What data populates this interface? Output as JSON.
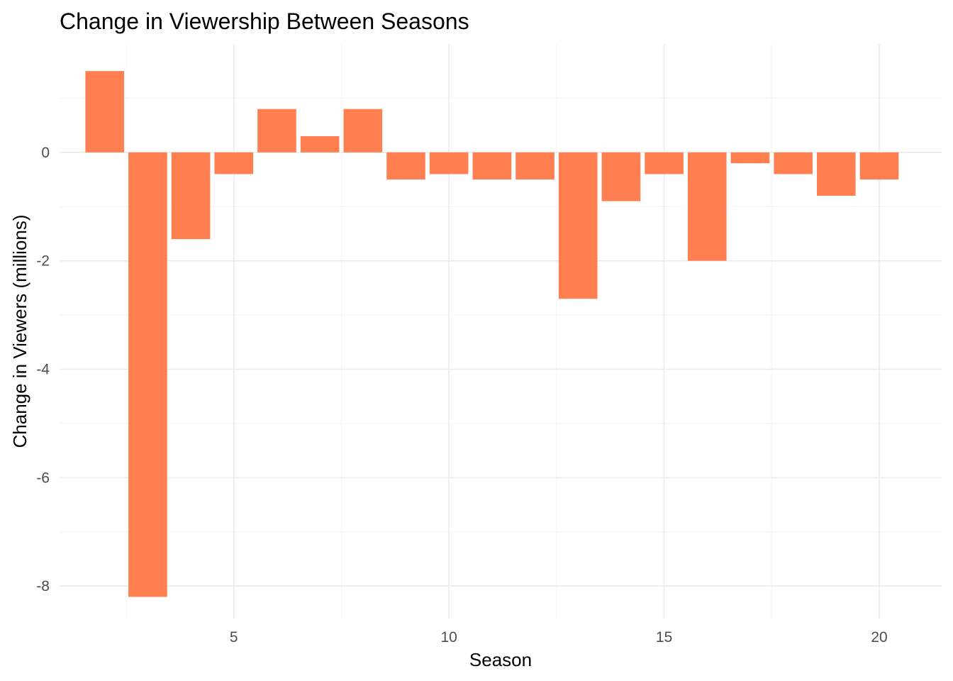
{
  "chart_data": {
    "type": "bar",
    "title": "Change in Viewership Between Seasons",
    "xlabel": "Season",
    "ylabel": "Change in Viewers (millions)",
    "x": [
      2,
      3,
      4,
      5,
      6,
      7,
      8,
      9,
      10,
      11,
      12,
      13,
      14,
      15,
      16,
      17,
      18,
      19,
      20
    ],
    "values": [
      1.5,
      -8.2,
      -1.6,
      -0.4,
      0.8,
      0.3,
      0.8,
      -0.5,
      -0.4,
      -0.5,
      -0.5,
      -2.7,
      -0.9,
      -0.4,
      -2.0,
      -0.2,
      -0.4,
      -0.8,
      -0.5
    ],
    "xlim": [
      0.95,
      21.45
    ],
    "ylim": [
      -8.6,
      2.0
    ],
    "x_ticks": [
      5,
      10,
      15,
      20
    ],
    "y_ticks": [
      0,
      -2,
      -4,
      -6,
      -8
    ],
    "grid": true,
    "legend": false,
    "bar_color": "#FF7F50"
  }
}
